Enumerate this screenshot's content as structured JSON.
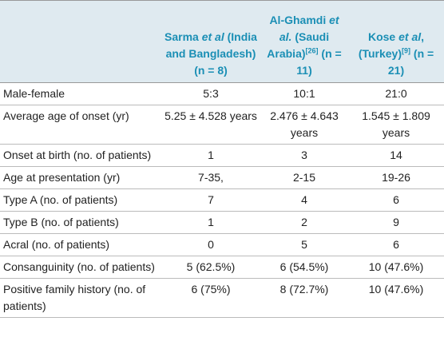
{
  "table": {
    "header": [
      [
        "Sarma",
        "et al",
        "(India and Bangladesh)",
        "(n = 8)"
      ],
      [
        "Al-Ghamdi",
        "et al.",
        "(Saudi Arabia)",
        "[26]",
        "(n = 11)"
      ],
      [
        "Kose",
        "et al",
        ", (Turkey)",
        "[9]",
        "(n = 21)"
      ]
    ],
    "rows": [
      [
        "Male-female",
        "5:3",
        "10:1",
        "21:0"
      ],
      [
        "Average age of onset (yr)",
        "5.25 ± 4.528 years",
        "2.476 ± 4.643 years",
        "1.545 ± 1.809 years"
      ],
      [
        "Onset at birth (no. of patients)",
        "1",
        "3",
        "14"
      ],
      [
        "Age at presentation (yr)",
        "7-35,",
        "2-15",
        "19-26"
      ],
      [
        "Type A (no. of patients)",
        "7",
        "4",
        "6"
      ],
      [
        "Type B (no. of patients)",
        "1",
        "2",
        "9"
      ],
      [
        "Acral (no. of patients)",
        "0",
        "5",
        "6"
      ],
      [
        "Consanguinity (no. of patients)",
        "5 (62.5%)",
        "6 (54.5%)",
        "10 (47.6%)"
      ],
      [
        "Positive family history (no. of patients)",
        "6 (75%)",
        "8 (72.7%)",
        "10 (47.6%)"
      ]
    ]
  }
}
